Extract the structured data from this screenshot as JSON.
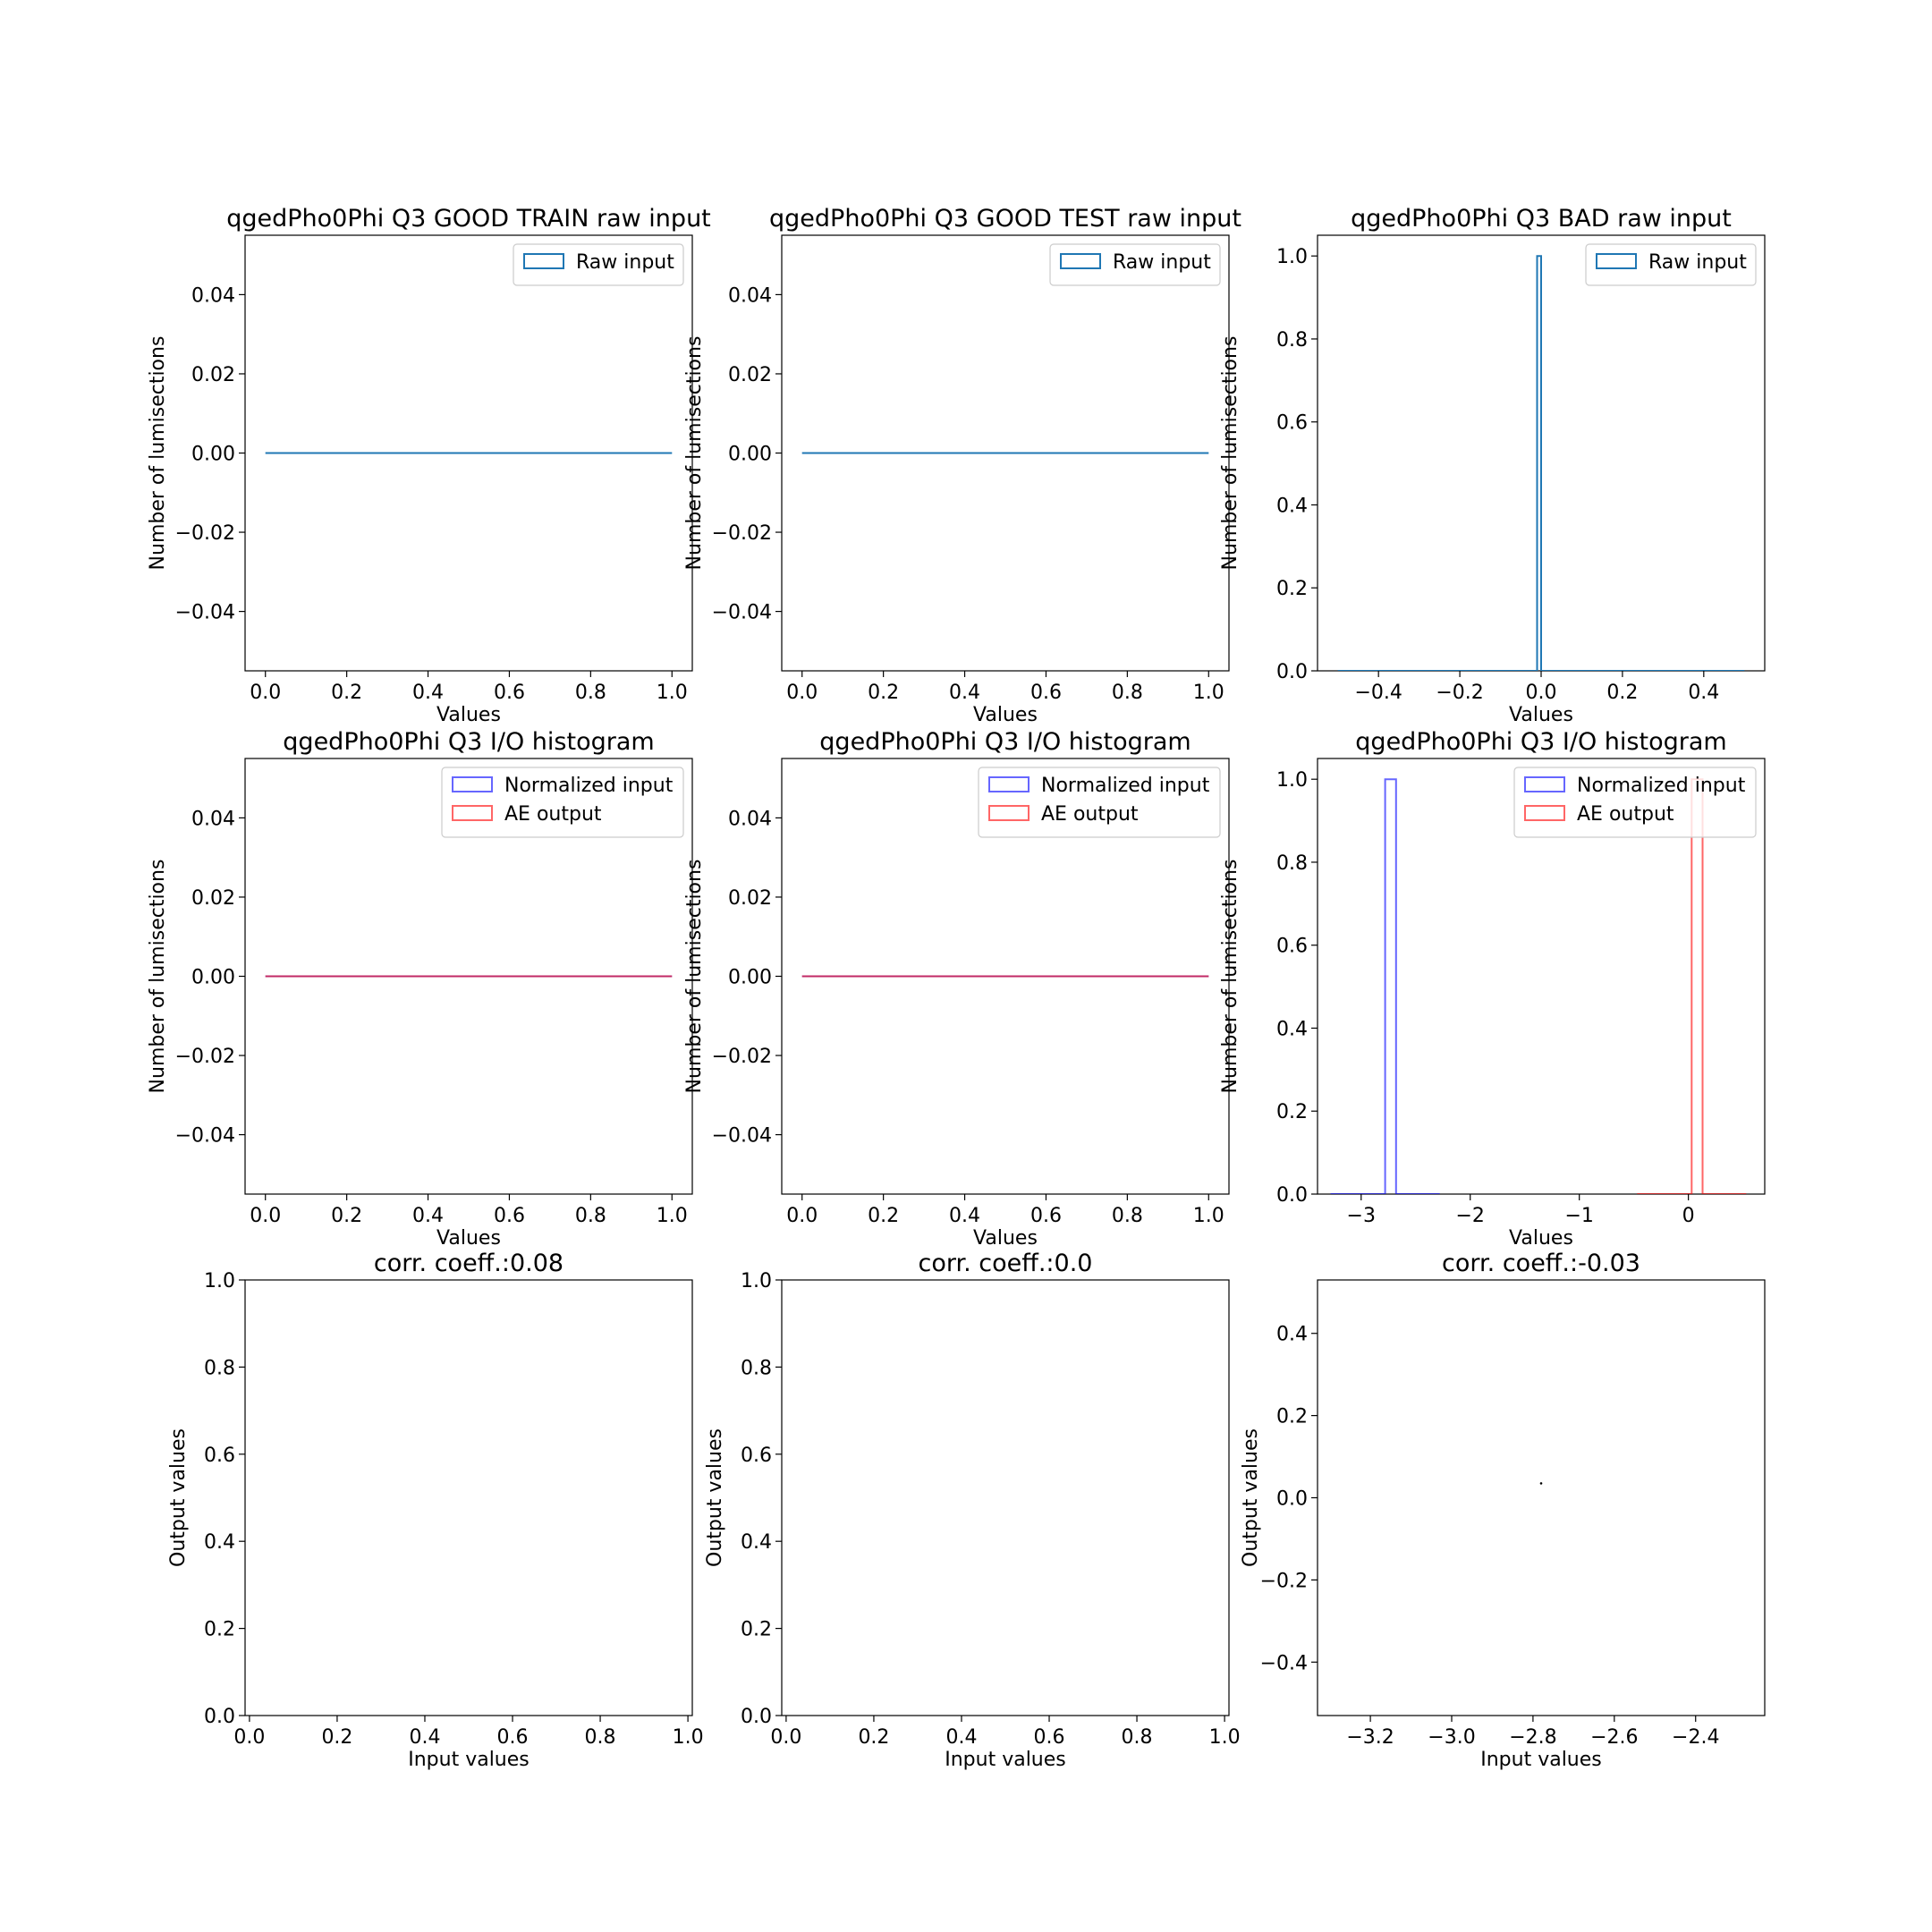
{
  "figure": {
    "background": "#ffffff",
    "colors": {
      "raw": "#1f77b4",
      "input": "#0000ff",
      "output": "#ff0000",
      "scatter": "#000000"
    }
  },
  "chart_data": [
    {
      "type": "histogram",
      "title": "qgedPho0Phi Q3 GOOD TRAIN raw input",
      "xlabel": "Values",
      "ylabel": "Number of lumisections",
      "xlim": [
        -0.05,
        1.05
      ],
      "ylim": [
        -0.055,
        0.055
      ],
      "xticks": [
        0.0,
        0.2,
        0.4,
        0.6,
        0.8,
        1.0
      ],
      "xtick_labels": [
        "0.0",
        "0.2",
        "0.4",
        "0.6",
        "0.8",
        "1.0"
      ],
      "yticks": [
        -0.04,
        -0.02,
        0.0,
        0.02,
        0.04
      ],
      "ytick_labels": [
        "−0.04",
        "−0.02",
        "0.00",
        "0.02",
        "0.04"
      ],
      "legend": {
        "position": "upper right",
        "entries": [
          "Raw input"
        ]
      },
      "series": [
        {
          "name": "Raw input",
          "color": "#1f77b4",
          "alpha": 1.0,
          "segments": [
            {
              "x": [
                0.0,
                1.0
              ],
              "y": [
                0,
                0
              ]
            }
          ]
        }
      ]
    },
    {
      "type": "histogram",
      "title": "qgedPho0Phi Q3 GOOD TEST raw input",
      "xlabel": "Values",
      "ylabel": "Number of lumisections",
      "xlim": [
        -0.05,
        1.05
      ],
      "ylim": [
        -0.055,
        0.055
      ],
      "xticks": [
        0.0,
        0.2,
        0.4,
        0.6,
        0.8,
        1.0
      ],
      "xtick_labels": [
        "0.0",
        "0.2",
        "0.4",
        "0.6",
        "0.8",
        "1.0"
      ],
      "yticks": [
        -0.04,
        -0.02,
        0.0,
        0.02,
        0.04
      ],
      "ytick_labels": [
        "−0.04",
        "−0.02",
        "0.00",
        "0.02",
        "0.04"
      ],
      "legend": {
        "position": "upper right",
        "entries": [
          "Raw input"
        ]
      },
      "series": [
        {
          "name": "Raw input",
          "color": "#1f77b4",
          "alpha": 1.0,
          "segments": [
            {
              "x": [
                0.0,
                1.0
              ],
              "y": [
                0,
                0
              ]
            }
          ]
        }
      ]
    },
    {
      "type": "histogram",
      "title": "qgedPho0Phi Q3 BAD raw input",
      "xlabel": "Values",
      "ylabel": "Number of lumisections",
      "xlim": [
        -0.55,
        0.55
      ],
      "ylim": [
        0.0,
        1.05
      ],
      "xticks": [
        -0.4,
        -0.2,
        0.0,
        0.2,
        0.4
      ],
      "xtick_labels": [
        "−0.4",
        "−0.2",
        "0.0",
        "0.2",
        "0.4"
      ],
      "yticks": [
        0.0,
        0.2,
        0.4,
        0.6,
        0.8,
        1.0
      ],
      "ytick_labels": [
        "0.0",
        "0.2",
        "0.4",
        "0.6",
        "0.8",
        "1.0"
      ],
      "legend": {
        "position": "upper right",
        "entries": [
          "Raw input"
        ]
      },
      "series": [
        {
          "name": "Raw input",
          "color": "#1f77b4",
          "alpha": 1.0,
          "segments": [
            {
              "x": [
                -0.5,
                -0.01,
                -0.01,
                0.0,
                0.0,
                0.5
              ],
              "y": [
                0,
                0,
                1,
                1,
                0,
                0
              ]
            }
          ]
        }
      ]
    },
    {
      "type": "histogram",
      "title": "qgedPho0Phi Q3 I/O histogram",
      "xlabel": "Values",
      "ylabel": "Number of lumisections",
      "xlim": [
        -0.05,
        1.05
      ],
      "ylim": [
        -0.055,
        0.055
      ],
      "xticks": [
        0.0,
        0.2,
        0.4,
        0.6,
        0.8,
        1.0
      ],
      "xtick_labels": [
        "0.0",
        "0.2",
        "0.4",
        "0.6",
        "0.8",
        "1.0"
      ],
      "yticks": [
        -0.04,
        -0.02,
        0.0,
        0.02,
        0.04
      ],
      "ytick_labels": [
        "−0.04",
        "−0.02",
        "0.00",
        "0.02",
        "0.04"
      ],
      "legend": {
        "position": "upper right",
        "entries": [
          "Normalized input",
          "AE output"
        ]
      },
      "series": [
        {
          "name": "Normalized input",
          "color": "#0000ff",
          "alpha": 0.6,
          "segments": [
            {
              "x": [
                0.0,
                1.0
              ],
              "y": [
                0,
                0
              ]
            }
          ]
        },
        {
          "name": "AE output",
          "color": "#ff0000",
          "alpha": 0.6,
          "segments": [
            {
              "x": [
                0.0,
                1.0
              ],
              "y": [
                0,
                0
              ]
            }
          ]
        }
      ]
    },
    {
      "type": "histogram",
      "title": "qgedPho0Phi Q3 I/O histogram",
      "xlabel": "Values",
      "ylabel": "Number of lumisections",
      "xlim": [
        -0.05,
        1.05
      ],
      "ylim": [
        -0.055,
        0.055
      ],
      "xticks": [
        0.0,
        0.2,
        0.4,
        0.6,
        0.8,
        1.0
      ],
      "xtick_labels": [
        "0.0",
        "0.2",
        "0.4",
        "0.6",
        "0.8",
        "1.0"
      ],
      "yticks": [
        -0.04,
        -0.02,
        0.0,
        0.02,
        0.04
      ],
      "ytick_labels": [
        "−0.04",
        "−0.02",
        "0.00",
        "0.02",
        "0.04"
      ],
      "legend": {
        "position": "upper right",
        "entries": [
          "Normalized input",
          "AE output"
        ]
      },
      "series": [
        {
          "name": "Normalized input",
          "color": "#0000ff",
          "alpha": 0.6,
          "segments": [
            {
              "x": [
                0.0,
                1.0
              ],
              "y": [
                0,
                0
              ]
            }
          ]
        },
        {
          "name": "AE output",
          "color": "#ff0000",
          "alpha": 0.6,
          "segments": [
            {
              "x": [
                0.0,
                1.0
              ],
              "y": [
                0,
                0
              ]
            }
          ]
        }
      ]
    },
    {
      "type": "histogram",
      "title": "qgedPho0Phi Q3 I/O histogram",
      "xlabel": "Values",
      "ylabel": "Number of lumisections",
      "xlim": [
        -3.4,
        0.7
      ],
      "ylim": [
        0.0,
        1.05
      ],
      "xticks": [
        -3,
        -2,
        -1,
        0
      ],
      "xtick_labels": [
        "−3",
        "−2",
        "−1",
        "0"
      ],
      "yticks": [
        0.0,
        0.2,
        0.4,
        0.6,
        0.8,
        1.0
      ],
      "ytick_labels": [
        "0.0",
        "0.2",
        "0.4",
        "0.6",
        "0.8",
        "1.0"
      ],
      "legend": {
        "position": "upper right",
        "entries": [
          "Normalized input",
          "AE output"
        ]
      },
      "series": [
        {
          "name": "Normalized input",
          "color": "#0000ff",
          "alpha": 0.6,
          "segments": [
            {
              "x": [
                -3.28,
                -2.78,
                -2.78,
                -2.68,
                -2.68,
                -2.28
              ],
              "y": [
                0,
                0,
                1,
                1,
                0,
                0
              ]
            }
          ]
        },
        {
          "name": "AE output",
          "color": "#ff0000",
          "alpha": 0.6,
          "segments": [
            {
              "x": [
                -0.47,
                0.03,
                0.03,
                0.13,
                0.13,
                0.53
              ],
              "y": [
                0,
                0,
                1,
                1,
                0,
                0
              ]
            }
          ]
        }
      ]
    },
    {
      "type": "scatter",
      "title": "corr. coeff.:0.08",
      "xlabel": "Input values",
      "ylabel": "Output values",
      "xlim": [
        -0.01,
        1.01
      ],
      "ylim": [
        0.0,
        1.0
      ],
      "xticks": [
        0.0,
        0.2,
        0.4,
        0.6,
        0.8,
        1.0
      ],
      "xtick_labels": [
        "0.0",
        "0.2",
        "0.4",
        "0.6",
        "0.8",
        "1.0"
      ],
      "yticks": [
        0.0,
        0.2,
        0.4,
        0.6,
        0.8,
        1.0
      ],
      "ytick_labels": [
        "0.0",
        "0.2",
        "0.4",
        "0.6",
        "0.8",
        "1.0"
      ],
      "points": []
    },
    {
      "type": "scatter",
      "title": "corr. coeff.:0.0",
      "xlabel": "Input values",
      "ylabel": "Output values",
      "xlim": [
        -0.01,
        1.01
      ],
      "ylim": [
        0.0,
        1.0
      ],
      "xticks": [
        0.0,
        0.2,
        0.4,
        0.6,
        0.8,
        1.0
      ],
      "xtick_labels": [
        "0.0",
        "0.2",
        "0.4",
        "0.6",
        "0.8",
        "1.0"
      ],
      "yticks": [
        0.0,
        0.2,
        0.4,
        0.6,
        0.8,
        1.0
      ],
      "ytick_labels": [
        "0.0",
        "0.2",
        "0.4",
        "0.6",
        "0.8",
        "1.0"
      ],
      "points": []
    },
    {
      "type": "scatter",
      "title": "corr. coeff.:-0.03",
      "xlabel": "Input values",
      "ylabel": "Output values",
      "xlim": [
        -3.33,
        -2.23
      ],
      "ylim": [
        -0.53,
        0.53
      ],
      "xticks": [
        -3.2,
        -3.0,
        -2.8,
        -2.6,
        -2.4
      ],
      "xtick_labels": [
        "−3.2",
        "−3.0",
        "−2.8",
        "−2.6",
        "−2.4"
      ],
      "yticks": [
        -0.4,
        -0.2,
        0.0,
        0.2,
        0.4
      ],
      "ytick_labels": [
        "−0.4",
        "−0.2",
        "0.0",
        "0.2",
        "0.4"
      ],
      "points": [
        {
          "x": [
            -2.78
          ],
          "y": [
            0.035
          ]
        }
      ]
    }
  ]
}
